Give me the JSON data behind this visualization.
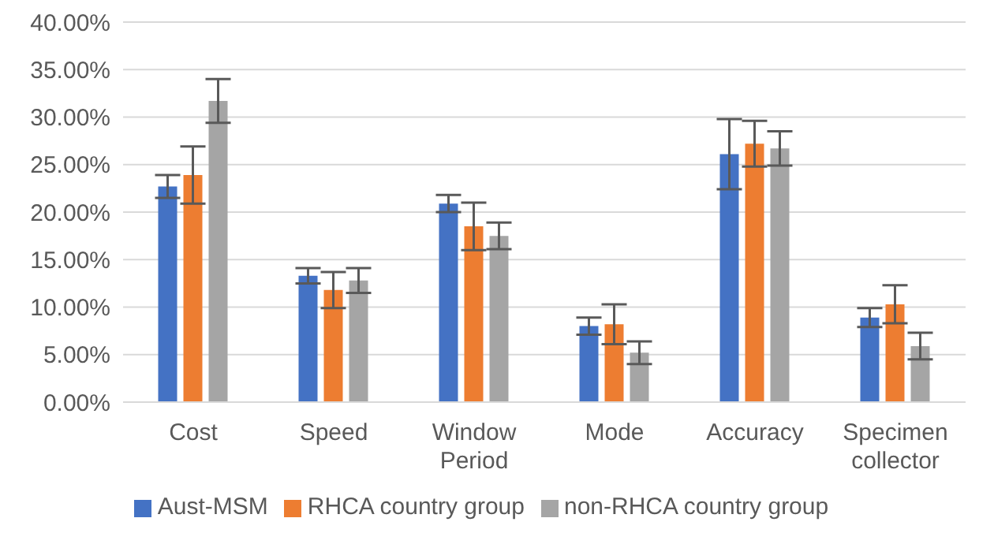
{
  "chart_data": {
    "type": "bar",
    "categories": [
      "Cost",
      "Speed",
      "Window Period",
      "Mode",
      "Accuracy",
      "Specimen collector"
    ],
    "series": [
      {
        "name": "Aust-MSM",
        "color": "#4472c4",
        "values": [
          22.7,
          13.3,
          20.9,
          8.0,
          26.1,
          8.9
        ],
        "errors": [
          1.2,
          0.8,
          0.9,
          0.9,
          3.7,
          1.0
        ]
      },
      {
        "name": "RHCA country group",
        "color": "#ed7d31",
        "values": [
          23.9,
          11.8,
          18.5,
          8.2,
          27.2,
          10.3
        ],
        "errors": [
          3.0,
          1.9,
          2.5,
          2.1,
          2.4,
          2.0
        ]
      },
      {
        "name": "non-RHCA country group",
        "color": "#a5a5a5",
        "values": [
          31.7,
          12.8,
          17.5,
          5.2,
          26.7,
          5.9
        ],
        "errors": [
          2.3,
          1.3,
          1.4,
          1.2,
          1.8,
          1.4
        ]
      }
    ],
    "ylim": [
      0,
      40
    ],
    "yticks": [
      {
        "value": 0,
        "label": "0.00%"
      },
      {
        "value": 5,
        "label": "5.00%"
      },
      {
        "value": 10,
        "label": "10.00%"
      },
      {
        "value": 15,
        "label": "15.00%"
      },
      {
        "value": 20,
        "label": "20.00%"
      },
      {
        "value": 25,
        "label": "25.00%"
      },
      {
        "value": 30,
        "label": "30.00%"
      },
      {
        "value": 35,
        "label": "35.00%"
      },
      {
        "value": 40,
        "label": "40.00%"
      }
    ],
    "grid": "y",
    "legend": "bottom"
  }
}
